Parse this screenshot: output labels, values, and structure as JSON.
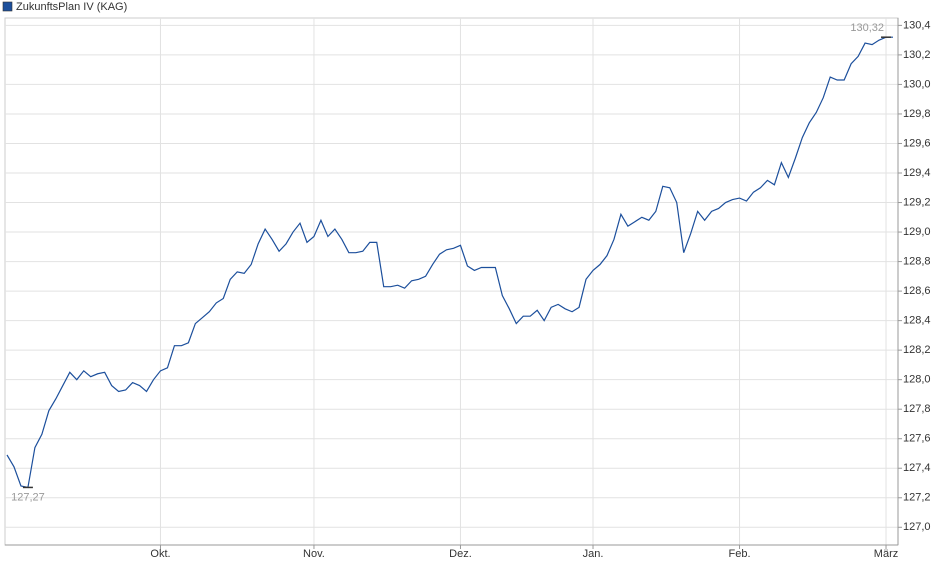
{
  "chart_data": {
    "type": "line",
    "categories": [
      null,
      null,
      null,
      null,
      null,
      null,
      null,
      null,
      null,
      null,
      null,
      null,
      null,
      null,
      null,
      null,
      null,
      null,
      null,
      null,
      null,
      null,
      "Okt.",
      null,
      null,
      null,
      null,
      null,
      null,
      null,
      null,
      null,
      null,
      null,
      null,
      null,
      null,
      null,
      null,
      null,
      null,
      null,
      null,
      null,
      "Nov.",
      null,
      null,
      null,
      null,
      null,
      null,
      null,
      null,
      null,
      null,
      null,
      null,
      null,
      null,
      null,
      null,
      null,
      null,
      null,
      null,
      "Dez.",
      null,
      null,
      null,
      null,
      null,
      null,
      null,
      null,
      null,
      null,
      null,
      null,
      null,
      null,
      null,
      null,
      null,
      null,
      "Jan.",
      null,
      null,
      null,
      null,
      null,
      null,
      null,
      null,
      null,
      null,
      null,
      null,
      null,
      null,
      null,
      null,
      null,
      null,
      null,
      null,
      "Feb.",
      null,
      null,
      null,
      null,
      null,
      null,
      null,
      null,
      null,
      null,
      null,
      null,
      null,
      null,
      null,
      null,
      null,
      null,
      null,
      null,
      "März",
      null
    ],
    "series": [
      {
        "name": "ZukunftsPlan IV (KAG)",
        "color": "#1c4f9c",
        "values": [
          127.49,
          127.41,
          127.28,
          127.27,
          127.54,
          127.63,
          127.79,
          127.87,
          127.96,
          128.05,
          128.0,
          128.06,
          128.02,
          128.04,
          128.05,
          127.96,
          127.92,
          127.93,
          127.98,
          127.96,
          127.92,
          128.0,
          128.06,
          128.08,
          128.23,
          128.23,
          128.25,
          128.38,
          128.42,
          128.46,
          128.52,
          128.55,
          128.68,
          128.73,
          128.72,
          128.78,
          128.92,
          129.02,
          128.95,
          128.87,
          128.92,
          129.0,
          129.06,
          128.93,
          128.97,
          129.08,
          128.97,
          129.02,
          128.95,
          128.86,
          128.86,
          128.87,
          128.93,
          128.93,
          128.63,
          128.63,
          128.64,
          128.62,
          128.67,
          128.68,
          128.7,
          128.78,
          128.85,
          128.88,
          128.89,
          128.91,
          128.77,
          128.74,
          128.76,
          128.76,
          128.76,
          128.57,
          128.48,
          128.38,
          128.43,
          128.43,
          128.47,
          128.4,
          128.49,
          128.51,
          128.48,
          128.46,
          128.49,
          128.68,
          128.74,
          128.78,
          128.84,
          128.95,
          129.12,
          129.04,
          129.07,
          129.1,
          129.08,
          129.14,
          129.31,
          129.3,
          129.2,
          128.86,
          128.99,
          129.14,
          129.08,
          129.14,
          129.16,
          129.2,
          129.22,
          129.23,
          129.21,
          129.27,
          129.3,
          129.35,
          129.32,
          129.47,
          129.37,
          129.5,
          129.64,
          129.74,
          129.81,
          129.91,
          130.05,
          130.03,
          130.03,
          130.14,
          130.19,
          130.28,
          130.27,
          130.3,
          130.32,
          130.32
        ],
        "value_labels": [
          null,
          null,
          null,
          "127,27",
          null,
          null,
          null,
          null,
          null,
          null,
          null,
          null,
          null,
          null,
          null,
          null,
          null,
          null,
          null,
          null,
          null,
          null,
          null,
          null,
          null,
          null,
          null,
          null,
          null,
          null,
          null,
          null,
          null,
          null,
          null,
          null,
          null,
          null,
          null,
          null,
          null,
          null,
          null,
          null,
          null,
          null,
          null,
          null,
          null,
          null,
          null,
          null,
          null,
          null,
          null,
          null,
          null,
          null,
          null,
          null,
          null,
          null,
          null,
          null,
          null,
          null,
          null,
          null,
          null,
          null,
          null,
          null,
          null,
          null,
          null,
          null,
          null,
          null,
          null,
          null,
          null,
          null,
          null,
          null,
          null,
          null,
          null,
          null,
          null,
          null,
          null,
          null,
          null,
          null,
          null,
          null,
          null,
          null,
          null,
          null,
          null,
          null,
          null,
          null,
          null,
          null,
          null,
          null,
          null,
          null,
          null,
          null,
          null,
          null,
          null,
          null,
          null,
          null,
          null,
          null,
          null,
          null,
          null,
          null,
          null,
          null,
          "130,32",
          null
        ]
      }
    ],
    "ylim": [
      126.88,
      130.45
    ],
    "yticks": [
      {
        "value": 127.0,
        "label": "127,0"
      },
      {
        "value": 127.2,
        "label": "127,2"
      },
      {
        "value": 127.4,
        "label": "127,4"
      },
      {
        "value": 127.6,
        "label": "127,6"
      },
      {
        "value": 127.8,
        "label": "127,8"
      },
      {
        "value": 128.0,
        "label": "128,0"
      },
      {
        "value": 128.2,
        "label": "128,2"
      },
      {
        "value": 128.4,
        "label": "128,4"
      },
      {
        "value": 128.6,
        "label": "128,6"
      },
      {
        "value": 128.8,
        "label": "128,8"
      },
      {
        "value": 129.0,
        "label": "129,0"
      },
      {
        "value": 129.2,
        "label": "129,2"
      },
      {
        "value": 129.4,
        "label": "129,4"
      },
      {
        "value": 129.6,
        "label": "129,6"
      },
      {
        "value": 129.8,
        "label": "129,8"
      },
      {
        "value": 130.0,
        "label": "130,0"
      },
      {
        "value": 130.2,
        "label": "130,2"
      },
      {
        "value": 130.4,
        "label": "130,4"
      }
    ],
    "grid": true
  }
}
